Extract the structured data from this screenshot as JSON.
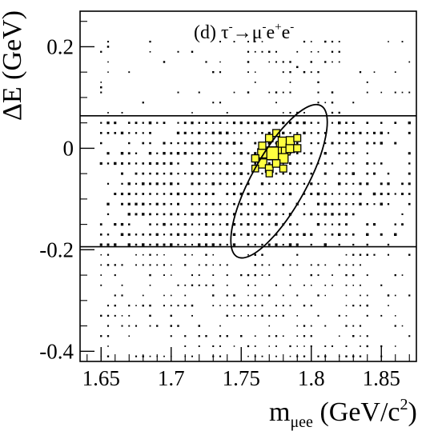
{
  "chart_data": {
    "type": "scatter",
    "title": "",
    "annotation": {
      "prefix": "(d) τ",
      "sup1": "-",
      "arrow": "→",
      "mu": "μ",
      "sup2": "-",
      "e1": "e",
      "sup3": "+",
      "e2": "e",
      "sup4": "-"
    },
    "xlabel": {
      "main": "m",
      "sub": "μee",
      "unit": " (GeV/c",
      "unit_sup": "2",
      "unit_end": ")"
    },
    "ylabel": "ΔE (GeV)",
    "xlim": [
      1.635,
      1.875
    ],
    "ylim": [
      -0.42,
      0.27
    ],
    "x_ticks": [
      {
        "value": 1.65,
        "label": "1.65"
      },
      {
        "value": 1.7,
        "label": "1.7"
      },
      {
        "value": 1.75,
        "label": "1.75"
      },
      {
        "value": 1.8,
        "label": "1.8"
      },
      {
        "value": 1.85,
        "label": "1.85"
      }
    ],
    "y_ticks": [
      {
        "value": 0.2,
        "label": "0.2"
      },
      {
        "value": 0,
        "label": "0"
      },
      {
        "value": -0.2,
        "label": "-0.2"
      },
      {
        "value": -0.4,
        "label": "-0.4"
      }
    ],
    "grid": false,
    "legend": "none",
    "band_lines_y": [
      0.064,
      -0.194
    ],
    "signal_ellipse": {
      "center_x": 1.777,
      "center_y": -0.065,
      "semi_major_dev": 0.047,
      "semi_minor_dev": 0.013,
      "rotation_deg": -61
    },
    "signal_color": "#ffff40",
    "bin_width_x": 0.005,
    "bin_width_y": 0.02,
    "signal_boxes": [
      {
        "x": 1.78,
        "y": 0.0,
        "weight": 1.0
      },
      {
        "x": 1.774,
        "y": -0.01,
        "weight": 0.92
      },
      {
        "x": 1.772,
        "y": -0.01,
        "weight": 0.85
      },
      {
        "x": 1.78,
        "y": 0.012,
        "weight": 0.55
      },
      {
        "x": 1.765,
        "y": -0.01,
        "weight": 0.45
      },
      {
        "x": 1.765,
        "y": -0.03,
        "weight": 0.45
      },
      {
        "x": 1.78,
        "y": -0.02,
        "weight": 0.5
      },
      {
        "x": 1.785,
        "y": 0.0,
        "weight": 0.4
      },
      {
        "x": 1.785,
        "y": 0.015,
        "weight": 0.35
      },
      {
        "x": 1.77,
        "y": 0.02,
        "weight": 0.3
      },
      {
        "x": 1.77,
        "y": -0.04,
        "weight": 0.32
      },
      {
        "x": 1.775,
        "y": -0.03,
        "weight": 0.3
      },
      {
        "x": 1.76,
        "y": -0.02,
        "weight": 0.28
      },
      {
        "x": 1.79,
        "y": 0.0,
        "weight": 0.28
      },
      {
        "x": 1.79,
        "y": 0.02,
        "weight": 0.26
      },
      {
        "x": 1.765,
        "y": 0.005,
        "weight": 0.28
      },
      {
        "x": 1.78,
        "y": -0.04,
        "weight": 0.26
      },
      {
        "x": 1.775,
        "y": 0.03,
        "weight": 0.26
      },
      {
        "x": 1.76,
        "y": -0.04,
        "weight": 0.24
      },
      {
        "x": 1.77,
        "y": -0.05,
        "weight": 0.22
      }
    ],
    "background_points": [
      {
        "x": 1.655,
        "y": 0.2,
        "weight": 0.1
      },
      {
        "x": 1.79,
        "y": 0.16,
        "weight": 0.12
      },
      {
        "x": 1.65,
        "y": 0.12,
        "weight": 0.09
      }
    ]
  }
}
